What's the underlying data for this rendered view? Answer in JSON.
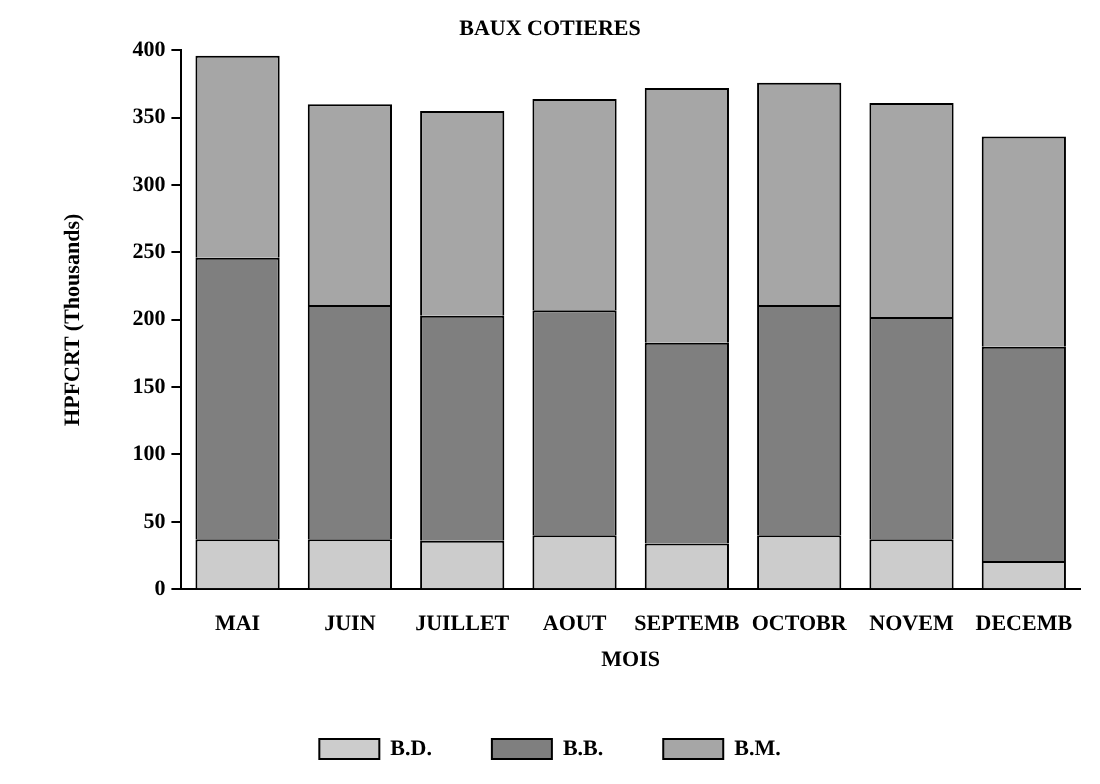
{
  "chart_data": {
    "type": "bar",
    "title": "BAUX COTIERES",
    "xlabel": "MOIS",
    "ylabel": "HPFCRT (Thousands)",
    "categories": [
      "MAI",
      "JUIN",
      "JUILLET",
      "AOUT",
      "SEPTEMB",
      "OCTOBR",
      "NOVEM",
      "DECEMB"
    ],
    "stacked": true,
    "series": [
      {
        "name": "B.D.",
        "color": "#cccccc",
        "values": [
          37,
          37,
          36,
          40,
          34,
          40,
          37,
          21
        ]
      },
      {
        "name": "B.B.",
        "color": "#7f7f7f",
        "values": [
          209,
          174,
          167,
          167,
          149,
          171,
          165,
          159
        ]
      },
      {
        "name": "B.M.",
        "color": "#a6a6a6",
        "values": [
          150,
          149,
          152,
          157,
          189,
          165,
          159,
          156
        ]
      }
    ],
    "ylim": [
      0,
      400
    ],
    "yticks": [
      0,
      50,
      100,
      150,
      200,
      250,
      300,
      350,
      400
    ],
    "grid": false,
    "legend": "bottom"
  }
}
